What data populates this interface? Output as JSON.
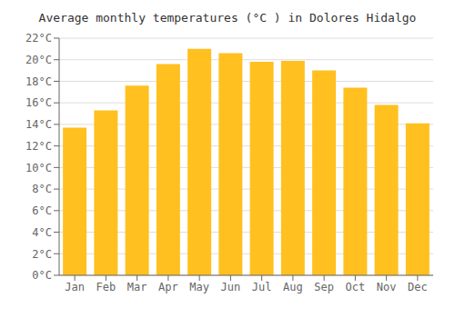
{
  "chart_data": {
    "type": "bar",
    "title": "Average monthly temperatures (°C ) in Dolores Hidalgo",
    "categories": [
      "Jan",
      "Feb",
      "Mar",
      "Apr",
      "May",
      "Jun",
      "Jul",
      "Aug",
      "Sep",
      "Oct",
      "Nov",
      "Dec"
    ],
    "values": [
      13.7,
      15.3,
      17.6,
      19.6,
      21.0,
      20.6,
      19.8,
      19.9,
      19.0,
      17.4,
      15.8,
      14.1
    ],
    "color": "#FFC020",
    "ylim": [
      0,
      22
    ],
    "yticks": [
      {
        "value": 0,
        "label": "0°C"
      },
      {
        "value": 2,
        "label": "2°C"
      },
      {
        "value": 4,
        "label": "4°C"
      },
      {
        "value": 6,
        "label": "6°C"
      },
      {
        "value": 8,
        "label": "8°C"
      },
      {
        "value": 10,
        "label": "10°C"
      },
      {
        "value": 12,
        "label": "12°C"
      },
      {
        "value": 14,
        "label": "14°C"
      },
      {
        "value": 16,
        "label": "16°C"
      },
      {
        "value": 18,
        "label": "18°C"
      },
      {
        "value": 20,
        "label": "20°C"
      },
      {
        "value": 22,
        "label": "22°C"
      }
    ],
    "grid": true
  }
}
